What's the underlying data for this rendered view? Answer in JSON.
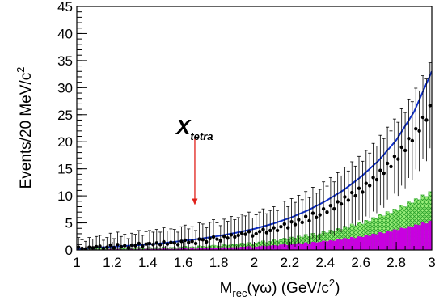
{
  "chart_data": {
    "type": "histogram",
    "title": "",
    "xlabel": {
      "main": "M",
      "sub": "rec",
      "rest": "(γω) (GeV/c",
      "sup": "2",
      "end": ")"
    },
    "ylabel": {
      "main": "Events/20 MeV/c",
      "sup": "2"
    },
    "xlim": [
      1.0,
      3.0
    ],
    "ylim": [
      0,
      45
    ],
    "x_ticks": [
      1,
      1.2,
      1.4,
      1.6,
      1.8,
      2,
      2.2,
      2.4,
      2.6,
      2.8,
      3
    ],
    "x_tick_labels": [
      "1",
      "1.2",
      "1.4",
      "1.6",
      "1.8",
      "2",
      "2.2",
      "2.4",
      "2.6",
      "2.8",
      "3"
    ],
    "y_ticks": [
      0,
      5,
      10,
      15,
      20,
      25,
      30,
      35,
      40,
      45
    ],
    "y_tick_labels": [
      "0",
      "5",
      "10",
      "15",
      "20",
      "25",
      "30",
      "35",
      "40",
      "45"
    ],
    "bin_start": 1.0,
    "bin_width": 0.02,
    "annotation": {
      "main": "X",
      "sub": "tetra",
      "x": 1.665,
      "arrow_from_y": 20.5,
      "arrow_to_y": 8.3,
      "color": "#e0201a"
    },
    "colors": {
      "background_fill": "#9df07c",
      "background_hatch": "#2aa02a",
      "peaking_fill": "#c800e0",
      "fit": "#1030c8",
      "data": "#000000",
      "arrow": "#e0201a"
    },
    "data": [
      0.5,
      0.3,
      0.2,
      0.5,
      0.4,
      0.6,
      0.7,
      0.3,
      0.5,
      0.9,
      0.4,
      1.0,
      0.6,
      0.8,
      0.4,
      0.9,
      0.8,
      1.2,
      0.7,
      1.1,
      1.2,
      1.0,
      1.3,
      1.0,
      1.5,
      1.1,
      1.4,
      1.3,
      1.0,
      1.6,
      1.8,
      1.4,
      1.6,
      1.2,
      2.0,
      1.9,
      1.5,
      2.1,
      2.4,
      2.0,
      1.7,
      2.5,
      2.2,
      2.8,
      2.4,
      2.7,
      3.1,
      2.9,
      3.4,
      2.6,
      3.0,
      3.4,
      3.8,
      3.2,
      3.6,
      4.1,
      3.6,
      4.3,
      4.8,
      4.1,
      5.2,
      4.7,
      5.6,
      5.1,
      6.2,
      5.4,
      6.8,
      6.0,
      6.5,
      7.6,
      7.0,
      8.2,
      7.6,
      8.9,
      8.5,
      9.8,
      9.2,
      10.6,
      10.0,
      11.4,
      10.7,
      12.3,
      11.9,
      13.4,
      13.0,
      14.7,
      14.2,
      16.0,
      15.4,
      17.3,
      16.8,
      19.0,
      18.4,
      20.6,
      20.2,
      22.4,
      22.0,
      24.5,
      24.0,
      26.7
    ],
    "errors": [
      1.8,
      1.6,
      1.4,
      1.8,
      1.6,
      1.9,
      2.0,
      1.5,
      1.8,
      2.2,
      1.7,
      2.3,
      1.9,
      2.1,
      1.7,
      2.2,
      2.1,
      2.4,
      2.0,
      2.3,
      2.4,
      2.3,
      2.5,
      2.3,
      2.6,
      2.4,
      2.5,
      2.5,
      2.3,
      2.7,
      2.8,
      2.5,
      2.7,
      2.4,
      3.0,
      2.9,
      2.6,
      3.0,
      3.2,
      3.0,
      2.8,
      3.2,
      3.1,
      3.4,
      3.2,
      3.3,
      3.5,
      3.4,
      3.6,
      3.3,
      3.5,
      3.6,
      3.8,
      3.5,
      3.7,
      3.9,
      3.7,
      4.0,
      4.2,
      3.9,
      4.3,
      4.1,
      4.5,
      4.2,
      4.6,
      4.3,
      4.8,
      4.5,
      4.7,
      5.0,
      4.8,
      5.2,
      5.0,
      5.4,
      5.2,
      5.5,
      5.4,
      5.7,
      5.5,
      5.9,
      5.7,
      6.1,
      6.0,
      6.3,
      6.2,
      6.5,
      6.4,
      6.7,
      6.6,
      6.9,
      6.8,
      7.1,
      7.0,
      7.3,
      7.2,
      7.5,
      7.4,
      7.7,
      7.6,
      7.9
    ],
    "background": [
      0.2,
      0.1,
      0.1,
      0.2,
      0.2,
      0.3,
      0.3,
      0.1,
      0.2,
      0.4,
      0.2,
      0.4,
      0.3,
      0.3,
      0.2,
      0.4,
      0.3,
      0.5,
      0.3,
      0.4,
      0.5,
      0.4,
      0.5,
      0.4,
      0.6,
      0.4,
      0.5,
      0.5,
      0.4,
      0.6,
      0.7,
      0.5,
      0.6,
      0.5,
      0.8,
      0.7,
      0.6,
      0.8,
      0.9,
      0.8,
      0.7,
      1.0,
      0.9,
      1.1,
      1.0,
      1.1,
      1.3,
      1.2,
      1.4,
      1.1,
      1.3,
      1.5,
      1.7,
      1.4,
      1.6,
      1.9,
      1.7,
      2.0,
      2.2,
      1.9,
      2.4,
      2.2,
      2.6,
      2.4,
      2.9,
      2.5,
      3.1,
      2.8,
      3.0,
      3.4,
      3.2,
      3.7,
      3.4,
      4.0,
      3.8,
      4.4,
      4.1,
      4.8,
      4.5,
      5.1,
      4.8,
      5.5,
      5.3,
      6.0,
      5.8,
      6.6,
      6.3,
      7.1,
      6.8,
      7.6,
      7.4,
      8.3,
      8.0,
      8.9,
      8.7,
      9.5,
      9.3,
      10.2,
      9.9,
      10.8
    ],
    "peaking": [
      0.1,
      0.0,
      0.0,
      0.1,
      0.1,
      0.1,
      0.1,
      0.0,
      0.1,
      0.2,
      0.1,
      0.2,
      0.1,
      0.1,
      0.1,
      0.2,
      0.1,
      0.2,
      0.1,
      0.2,
      0.2,
      0.2,
      0.2,
      0.2,
      0.3,
      0.2,
      0.2,
      0.2,
      0.2,
      0.3,
      0.3,
      0.2,
      0.3,
      0.2,
      0.4,
      0.3,
      0.3,
      0.4,
      0.4,
      0.4,
      0.3,
      0.5,
      0.4,
      0.5,
      0.5,
      0.5,
      0.6,
      0.6,
      0.7,
      0.5,
      0.6,
      0.7,
      0.8,
      0.7,
      0.8,
      0.9,
      0.8,
      1.0,
      1.1,
      0.9,
      1.2,
      1.1,
      1.3,
      1.2,
      1.4,
      1.2,
      1.5,
      1.4,
      1.5,
      1.7,
      1.6,
      1.8,
      1.7,
      2.0,
      1.9,
      2.2,
      2.0,
      2.4,
      2.2,
      2.5,
      2.4,
      2.7,
      2.6,
      3.0,
      2.9,
      3.3,
      3.1,
      3.5,
      3.4,
      3.8,
      3.7,
      4.1,
      4.0,
      4.4,
      4.3,
      4.7,
      4.6,
      5.1,
      4.9,
      5.4
    ],
    "fit_curve": {
      "x": [
        1.0,
        1.1,
        1.2,
        1.3,
        1.4,
        1.5,
        1.6,
        1.7,
        1.8,
        1.9,
        2.0,
        2.1,
        2.2,
        2.3,
        2.4,
        2.5,
        2.6,
        2.7,
        2.8,
        2.9,
        3.0
      ],
      "y": [
        0.2,
        0.4,
        0.6,
        0.8,
        1.0,
        1.3,
        1.7,
        2.1,
        2.6,
        3.2,
        3.9,
        4.8,
        5.9,
        7.3,
        9.0,
        11.0,
        13.5,
        16.5,
        20.3,
        25.5,
        33.0
      ]
    }
  }
}
